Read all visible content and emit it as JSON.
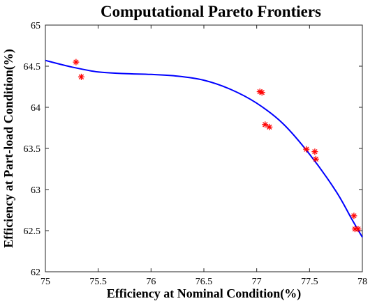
{
  "chart_data": {
    "type": "scatter",
    "title": "Computational Pareto Frontiers",
    "xlabel": "Efficiency at Nominal Condition(%)",
    "ylabel": "Efficiency at Part-load Condition(%)",
    "xlim": [
      75,
      78
    ],
    "ylim": [
      62,
      65
    ],
    "xticks": [
      "75",
      "75.5",
      "76",
      "76.5",
      "77",
      "77.5",
      "78"
    ],
    "yticks": [
      "62",
      "62.5",
      "63",
      "63.5",
      "64",
      "64.5",
      "65"
    ],
    "grid": false,
    "legend": "none",
    "series": [
      {
        "type": "scatter",
        "marker": "asterisk",
        "color": "#ff0000",
        "points": [
          {
            "x": 75.29,
            "y": 64.55
          },
          {
            "x": 75.34,
            "y": 64.37
          },
          {
            "x": 77.03,
            "y": 64.19
          },
          {
            "x": 77.05,
            "y": 64.18
          },
          {
            "x": 77.08,
            "y": 63.79
          },
          {
            "x": 77.12,
            "y": 63.76
          },
          {
            "x": 77.47,
            "y": 63.49
          },
          {
            "x": 77.55,
            "y": 63.46
          },
          {
            "x": 77.56,
            "y": 63.37
          },
          {
            "x": 77.92,
            "y": 62.68
          },
          {
            "x": 77.93,
            "y": 62.52
          },
          {
            "x": 77.96,
            "y": 62.52
          }
        ]
      },
      {
        "type": "line",
        "color": "#0000ff",
        "points": [
          {
            "x": 75.0,
            "y": 64.57
          },
          {
            "x": 75.25,
            "y": 64.49
          },
          {
            "x": 75.5,
            "y": 64.43
          },
          {
            "x": 75.75,
            "y": 64.41
          },
          {
            "x": 76.0,
            "y": 64.4
          },
          {
            "x": 76.25,
            "y": 64.38
          },
          {
            "x": 76.5,
            "y": 64.33
          },
          {
            "x": 76.75,
            "y": 64.22
          },
          {
            "x": 77.0,
            "y": 64.05
          },
          {
            "x": 77.25,
            "y": 63.8
          },
          {
            "x": 77.5,
            "y": 63.43
          },
          {
            "x": 77.75,
            "y": 62.98
          },
          {
            "x": 77.9,
            "y": 62.64
          },
          {
            "x": 78.0,
            "y": 62.42
          }
        ]
      }
    ]
  }
}
